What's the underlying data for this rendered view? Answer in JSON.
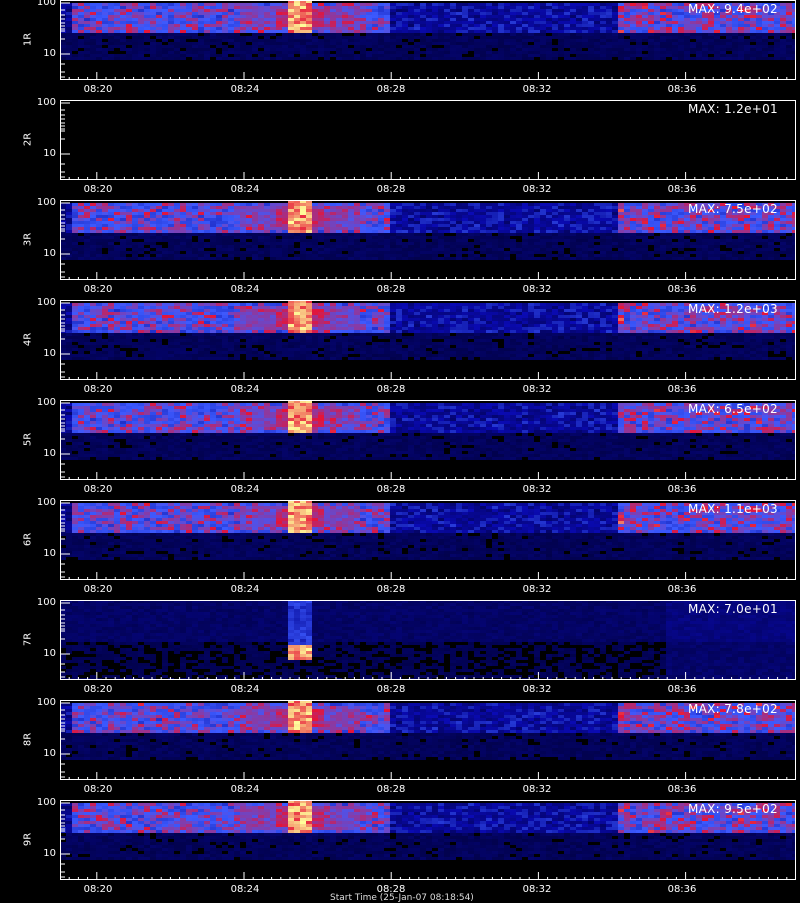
{
  "chart_data": {
    "type": "heatmap",
    "x_axis": {
      "ticks": [
        "08:20",
        "08:24",
        "08:28",
        "08:32",
        "08:36"
      ]
    },
    "y_axis": {
      "scale": "log",
      "ticks": [
        "100",
        "10"
      ]
    },
    "x_title": "Start Time (25-Jan-07 08:18:54)",
    "panels": [
      {
        "detector": "1R",
        "max_label": "MAX: 9.4e+02",
        "max_value": 940,
        "flare_peak": "strong"
      },
      {
        "detector": "2R",
        "max_label": "MAX: 1.2e+01",
        "max_value": 12,
        "flare_peak": "none"
      },
      {
        "detector": "3R",
        "max_label": "MAX: 7.5e+02",
        "max_value": 750,
        "flare_peak": "strong"
      },
      {
        "detector": "4R",
        "max_label": "MAX: 1.2e+03",
        "max_value": 1200,
        "flare_peak": "strong"
      },
      {
        "detector": "5R",
        "max_label": "MAX: 6.5e+02",
        "max_value": 650,
        "flare_peak": "strong"
      },
      {
        "detector": "6R",
        "max_label": "MAX: 1.1e+03",
        "max_value": 1100,
        "flare_peak": "strong"
      },
      {
        "detector": "7R",
        "max_label": "MAX: 7.0e+01",
        "max_value": 70,
        "flare_peak": "low-energy"
      },
      {
        "detector": "8R",
        "max_label": "MAX: 7.8e+02",
        "max_value": 780,
        "flare_peak": "strong"
      },
      {
        "detector": "9R",
        "max_label": "MAX: 9.5e+02",
        "max_value": 950,
        "flare_peak": "strong"
      }
    ],
    "colors": {
      "background": "#000000",
      "low": "#1a1aa0",
      "mid": "#3a4dff",
      "high": "#d02010",
      "peak": "#ffff80"
    }
  }
}
